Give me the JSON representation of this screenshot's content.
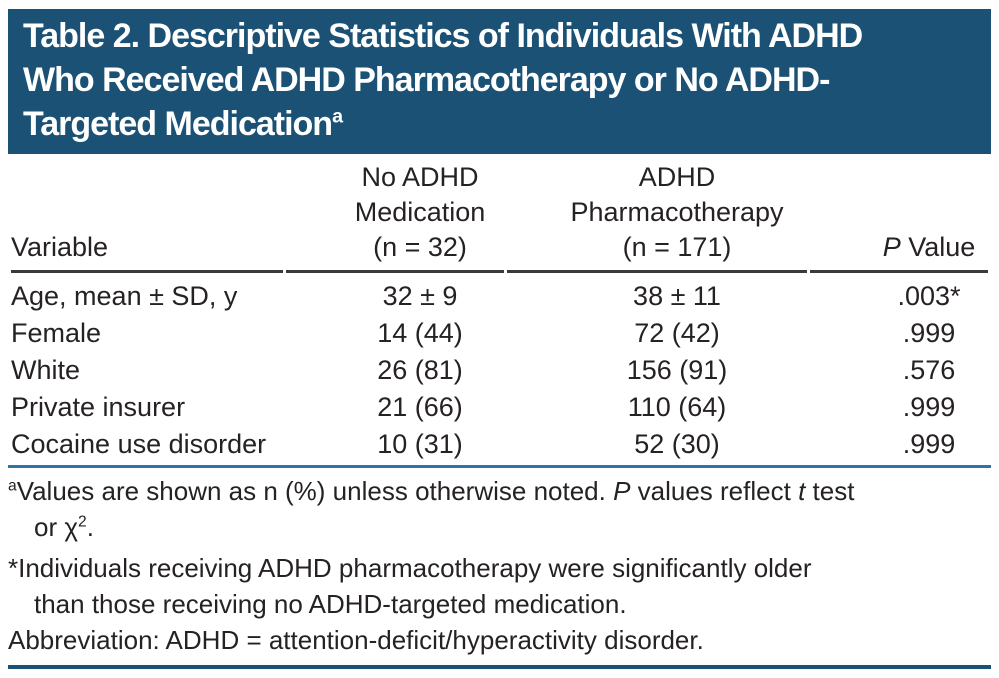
{
  "colors": {
    "header_bg": "#1a5174",
    "rule_dark": "#3a3a3a",
    "rule_blue": "#2e74a4",
    "rule_navy": "#1a5174",
    "text": "#262223"
  },
  "title": {
    "line1": "Table 2. Descriptive Statistics of Individuals With ADHD",
    "line2": "Who Received ADHD Pharmacotherapy or No ADHD-",
    "line3": "Targeted Medication",
    "superscript": "a"
  },
  "table": {
    "header": {
      "col1": "Variable",
      "col2_lines": [
        "No ADHD",
        "Medication",
        "(n = 32)"
      ],
      "col3_lines": [
        "ADHD",
        "Pharmacotherapy",
        "(n = 171)"
      ],
      "col4_italic": "P",
      "col4_rest": " Value"
    },
    "rows": [
      {
        "variable": "Age, mean ± SD, y",
        "no_med": "32 ± 9",
        "pharm": "38 ± 11",
        "p": ".003*"
      },
      {
        "variable": "Female",
        "no_med": "14 (44)",
        "pharm": "72 (42)",
        "p": ".999"
      },
      {
        "variable": "White",
        "no_med": "26 (81)",
        "pharm": "156 (91)",
        "p": ".576"
      },
      {
        "variable": "Private insurer",
        "no_med": "21 (66)",
        "pharm": "110 (64)",
        "p": ".999"
      },
      {
        "variable": "Cocaine use disorder",
        "no_med": "10 (31)",
        "pharm": "52 (30)",
        "p": ".999"
      }
    ]
  },
  "footnotes": {
    "a": {
      "marker": "a",
      "line1_text": "Values are shown as n (%) unless otherwise noted. ",
      "p_italic": "P",
      "mid_text": " values reflect ",
      "t_italic": "t",
      "tail_text": " test",
      "line2_text": "or χ",
      "chi_sup": "2",
      "line2_end": "."
    },
    "star": {
      "marker": "*",
      "line1": "Individuals receiving ADHD pharmacotherapy were significantly older",
      "line2": "than those receiving no ADHD-targeted medication."
    },
    "abbreviation": "Abbreviation: ADHD = attention-deficit/hyperactivity disorder."
  }
}
